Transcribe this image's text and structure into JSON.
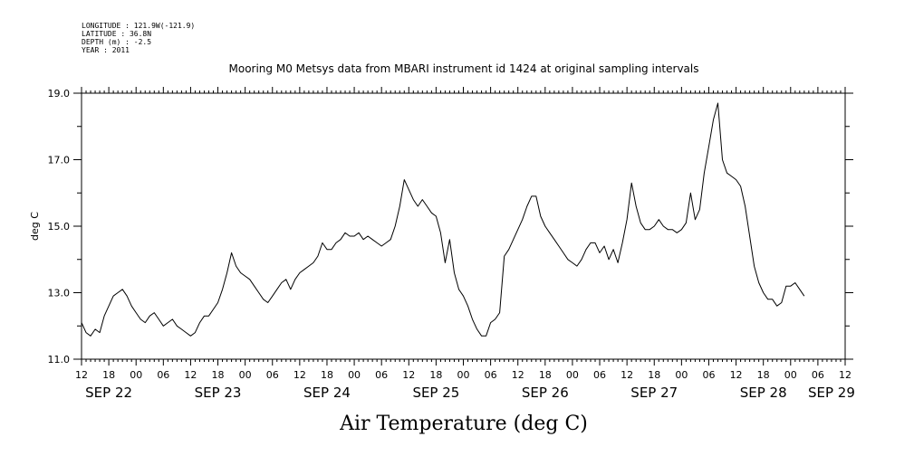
{
  "header": {
    "meta_lines": [
      "LONGITUDE : 121.9W(-121.9)",
      "LATITUDE : 36.8N",
      "DEPTH (m) : -2.5",
      "YEAR : 2011"
    ],
    "title": "Mooring M0 Metsys data from MBARI instrument id 1424 at original sampling intervals"
  },
  "chart_data": {
    "type": "line",
    "title": "Mooring M0 Metsys data from MBARI instrument id 1424 at original sampling intervals",
    "xlabel": "Air Temperature (deg C)",
    "ylabel": "deg C",
    "x_units": "hours since SEP 22 12:00, 2011",
    "xlim": [
      0,
      168
    ],
    "ylim": [
      11.0,
      19.0
    ],
    "y_ticks": [
      "11.0",
      "13.0",
      "15.0",
      "17.0",
      "19.0"
    ],
    "x_hour_ticks": [
      "12",
      "18",
      "00",
      "06",
      "12",
      "18",
      "00",
      "06",
      "12",
      "18",
      "00",
      "06",
      "12",
      "18",
      "00",
      "06",
      "12",
      "18",
      "00",
      "06",
      "12",
      "18",
      "00",
      "06",
      "12",
      "18",
      "00",
      "06",
      "12"
    ],
    "date_labels": [
      {
        "label": "SEP 22",
        "hour": 6
      },
      {
        "label": "SEP 23",
        "hour": 30
      },
      {
        "label": "SEP 24",
        "hour": 54
      },
      {
        "label": "SEP 25",
        "hour": 78
      },
      {
        "label": "SEP 26",
        "hour": 102
      },
      {
        "label": "SEP 27",
        "hour": 126
      },
      {
        "label": "SEP 28",
        "hour": 150
      },
      {
        "label": "SEP 29",
        "hour": 165
      }
    ],
    "grid": false,
    "series": [
      {
        "color": "#000000",
        "points": [
          [
            0,
            12.1
          ],
          [
            1,
            11.8
          ],
          [
            2,
            11.7
          ],
          [
            3,
            11.9
          ],
          [
            4,
            11.8
          ],
          [
            5,
            12.3
          ],
          [
            6,
            12.6
          ],
          [
            7,
            12.9
          ],
          [
            8,
            13.0
          ],
          [
            9,
            13.1
          ],
          [
            10,
            12.9
          ],
          [
            11,
            12.6
          ],
          [
            12,
            12.4
          ],
          [
            13,
            12.2
          ],
          [
            14,
            12.1
          ],
          [
            15,
            12.3
          ],
          [
            16,
            12.4
          ],
          [
            17,
            12.2
          ],
          [
            18,
            12.0
          ],
          [
            19,
            12.1
          ],
          [
            20,
            12.2
          ],
          [
            21,
            12.0
          ],
          [
            22,
            11.9
          ],
          [
            23,
            11.8
          ],
          [
            24,
            11.7
          ],
          [
            25,
            11.8
          ],
          [
            26,
            12.1
          ],
          [
            27,
            12.3
          ],
          [
            28,
            12.3
          ],
          [
            29,
            12.5
          ],
          [
            30,
            12.7
          ],
          [
            31,
            13.1
          ],
          [
            32,
            13.6
          ],
          [
            33,
            14.2
          ],
          [
            34,
            13.8
          ],
          [
            35,
            13.6
          ],
          [
            36,
            13.5
          ],
          [
            37,
            13.4
          ],
          [
            38,
            13.2
          ],
          [
            39,
            13.0
          ],
          [
            40,
            12.8
          ],
          [
            41,
            12.7
          ],
          [
            42,
            12.9
          ],
          [
            43,
            13.1
          ],
          [
            44,
            13.3
          ],
          [
            45,
            13.4
          ],
          [
            46,
            13.1
          ],
          [
            47,
            13.4
          ],
          [
            48,
            13.6
          ],
          [
            49,
            13.7
          ],
          [
            50,
            13.8
          ],
          [
            51,
            13.9
          ],
          [
            52,
            14.1
          ],
          [
            53,
            14.5
          ],
          [
            54,
            14.3
          ],
          [
            55,
            14.3
          ],
          [
            56,
            14.5
          ],
          [
            57,
            14.6
          ],
          [
            58,
            14.8
          ],
          [
            59,
            14.7
          ],
          [
            60,
            14.7
          ],
          [
            61,
            14.8
          ],
          [
            62,
            14.6
          ],
          [
            63,
            14.7
          ],
          [
            64,
            14.6
          ],
          [
            65,
            14.5
          ],
          [
            66,
            14.4
          ],
          [
            67,
            14.5
          ],
          [
            68,
            14.6
          ],
          [
            69,
            15.0
          ],
          [
            70,
            15.6
          ],
          [
            71,
            16.4
          ],
          [
            72,
            16.1
          ],
          [
            73,
            15.8
          ],
          [
            74,
            15.6
          ],
          [
            75,
            15.8
          ],
          [
            76,
            15.6
          ],
          [
            77,
            15.4
          ],
          [
            78,
            15.3
          ],
          [
            79,
            14.8
          ],
          [
            80,
            13.9
          ],
          [
            81,
            14.6
          ],
          [
            82,
            13.6
          ],
          [
            83,
            13.1
          ],
          [
            84,
            12.9
          ],
          [
            85,
            12.6
          ],
          [
            86,
            12.2
          ],
          [
            87,
            11.9
          ],
          [
            88,
            11.7
          ],
          [
            89,
            11.7
          ],
          [
            90,
            12.1
          ],
          [
            91,
            12.2
          ],
          [
            92,
            12.4
          ],
          [
            93,
            14.1
          ],
          [
            94,
            14.3
          ],
          [
            95,
            14.6
          ],
          [
            96,
            14.9
          ],
          [
            97,
            15.2
          ],
          [
            98,
            15.6
          ],
          [
            99,
            15.9
          ],
          [
            100,
            15.9
          ],
          [
            101,
            15.3
          ],
          [
            102,
            15.0
          ],
          [
            103,
            14.8
          ],
          [
            104,
            14.6
          ],
          [
            105,
            14.4
          ],
          [
            106,
            14.2
          ],
          [
            107,
            14.0
          ],
          [
            108,
            13.9
          ],
          [
            109,
            13.8
          ],
          [
            110,
            14.0
          ],
          [
            111,
            14.3
          ],
          [
            112,
            14.5
          ],
          [
            113,
            14.5
          ],
          [
            114,
            14.2
          ],
          [
            115,
            14.4
          ],
          [
            116,
            14.0
          ],
          [
            117,
            14.3
          ],
          [
            118,
            13.9
          ],
          [
            119,
            14.5
          ],
          [
            120,
            15.2
          ],
          [
            121,
            16.3
          ],
          [
            122,
            15.6
          ],
          [
            123,
            15.1
          ],
          [
            124,
            14.9
          ],
          [
            125,
            14.9
          ],
          [
            126,
            15.0
          ],
          [
            127,
            15.2
          ],
          [
            128,
            15.0
          ],
          [
            129,
            14.9
          ],
          [
            130,
            14.9
          ],
          [
            131,
            14.8
          ],
          [
            132,
            14.9
          ],
          [
            133,
            15.1
          ],
          [
            134,
            16.0
          ],
          [
            135,
            15.2
          ],
          [
            136,
            15.5
          ],
          [
            137,
            16.6
          ],
          [
            138,
            17.4
          ],
          [
            139,
            18.2
          ],
          [
            140,
            18.7
          ],
          [
            141,
            17.0
          ],
          [
            142,
            16.6
          ],
          [
            143,
            16.5
          ],
          [
            144,
            16.4
          ],
          [
            145,
            16.2
          ],
          [
            146,
            15.6
          ],
          [
            147,
            14.7
          ],
          [
            148,
            13.8
          ],
          [
            149,
            13.3
          ],
          [
            150,
            13.0
          ],
          [
            151,
            12.8
          ],
          [
            152,
            12.8
          ],
          [
            153,
            12.6
          ],
          [
            154,
            12.7
          ],
          [
            155,
            13.2
          ],
          [
            156,
            13.2
          ],
          [
            157,
            13.3
          ],
          [
            158,
            13.1
          ],
          [
            159,
            12.9
          ]
        ]
      }
    ]
  }
}
